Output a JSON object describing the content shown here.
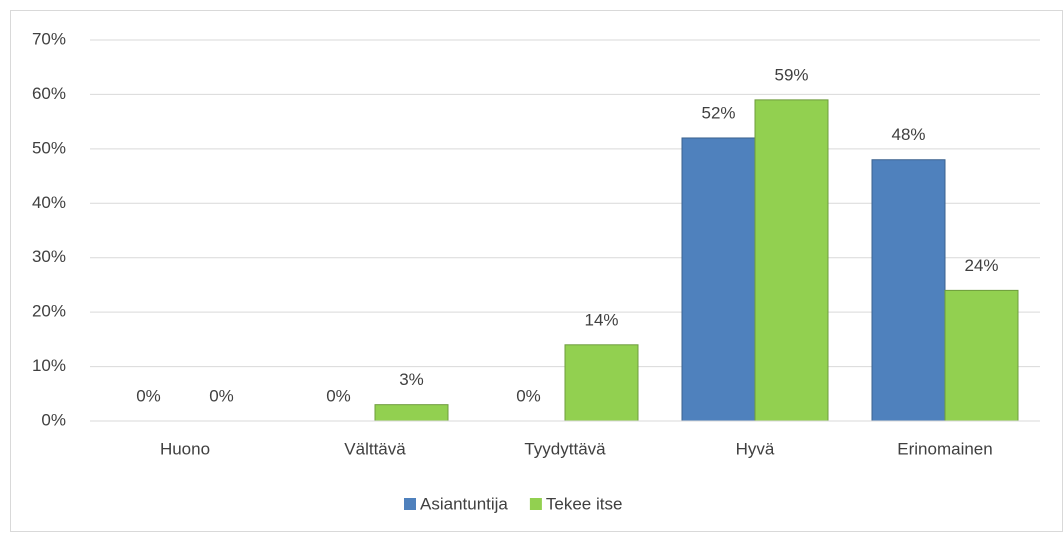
{
  "chart_data": {
    "type": "bar",
    "categories": [
      "Huono",
      "Välttävä",
      "Tyydyttävä",
      "Hyvä",
      "Erinomainen"
    ],
    "series": [
      {
        "name": "Asiantuntija",
        "color": "#4f81bd",
        "values": [
          0,
          0,
          0,
          52,
          48
        ],
        "value_labels": [
          "0%",
          "0%",
          "0%",
          "52%",
          "48%"
        ]
      },
      {
        "name": "Tekee itse",
        "color": "#92d050",
        "values": [
          0,
          3,
          14,
          59,
          24
        ],
        "value_labels": [
          "0%",
          "3%",
          "14%",
          "59%",
          "24%"
        ]
      }
    ],
    "ylim": [
      0,
      70
    ],
    "yticks": [
      {
        "value": 0,
        "label": "0%"
      },
      {
        "value": 10,
        "label": "10%"
      },
      {
        "value": 20,
        "label": "20%"
      },
      {
        "value": 30,
        "label": "30%"
      },
      {
        "value": 40,
        "label": "40%"
      },
      {
        "value": 50,
        "label": "50%"
      },
      {
        "value": 60,
        "label": "60%"
      },
      {
        "value": 70,
        "label": "70%"
      }
    ],
    "grid": true,
    "legend": "bottom"
  }
}
